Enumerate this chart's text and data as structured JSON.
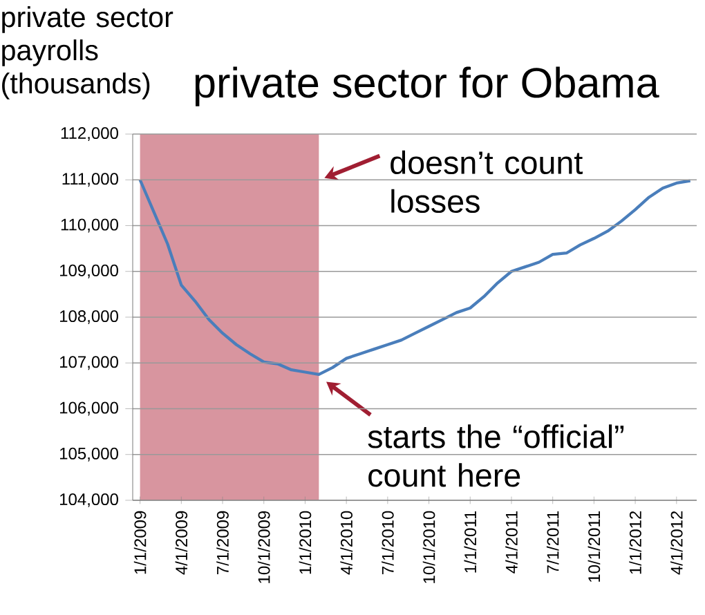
{
  "chart_data": {
    "type": "line",
    "title": "private sector for Obama",
    "ylabel": "private sector payrolls (thousands)",
    "x": [
      "2009-01",
      "2009-02",
      "2009-03",
      "2009-04",
      "2009-05",
      "2009-06",
      "2009-07",
      "2009-08",
      "2009-09",
      "2009-10",
      "2009-11",
      "2009-12",
      "2010-01",
      "2010-02",
      "2010-03",
      "2010-04",
      "2010-05",
      "2010-06",
      "2010-07",
      "2010-08",
      "2010-09",
      "2010-10",
      "2010-11",
      "2010-12",
      "2011-01",
      "2011-02",
      "2011-03",
      "2011-04",
      "2011-05",
      "2011-06",
      "2011-07",
      "2011-08",
      "2011-09",
      "2011-10",
      "2011-11",
      "2011-12",
      "2012-01",
      "2012-02",
      "2012-03",
      "2012-04",
      "2012-05"
    ],
    "values": [
      111000,
      110300,
      109600,
      108700,
      108350,
      107950,
      107650,
      107400,
      107200,
      107020,
      106980,
      106850,
      106800,
      106750,
      106900,
      107100,
      107200,
      107300,
      107400,
      107500,
      107650,
      107800,
      107950,
      108100,
      108200,
      108450,
      108750,
      109000,
      109100,
      109200,
      109370,
      109400,
      109580,
      109720,
      109880,
      110100,
      110350,
      110620,
      110820,
      110930,
      110980
    ],
    "color": "#4a7ebb",
    "line_style": "solid",
    "grid": "y",
    "xlim": [
      "2008-12-15",
      "2012-05-15"
    ],
    "ylim": [
      104000,
      112000
    ],
    "xticks": [
      {
        "value": "2009-01-01",
        "label": "1/1/2009"
      },
      {
        "value": "2009-04-01",
        "label": "4/1/2009"
      },
      {
        "value": "2009-07-01",
        "label": "7/1/2009"
      },
      {
        "value": "2009-10-01",
        "label": "10/1/2009"
      },
      {
        "value": "2010-01-01",
        "label": "1/1/2010"
      },
      {
        "value": "2010-04-01",
        "label": "4/1/2010"
      },
      {
        "value": "2010-07-01",
        "label": "7/1/2010"
      },
      {
        "value": "2010-10-01",
        "label": "10/1/2010"
      },
      {
        "value": "2011-01-01",
        "label": "1/1/2011"
      },
      {
        "value": "2011-04-01",
        "label": "4/1/2011"
      },
      {
        "value": "2011-07-01",
        "label": "7/1/2011"
      },
      {
        "value": "2011-10-01",
        "label": "10/1/2011"
      },
      {
        "value": "2012-01-01",
        "label": "1/1/2012"
      },
      {
        "value": "2012-04-01",
        "label": "4/1/2012"
      }
    ],
    "yticks": [
      {
        "value": 104000,
        "label": "104,000"
      },
      {
        "value": 105000,
        "label": "105,000"
      },
      {
        "value": 106000,
        "label": "106,000"
      },
      {
        "value": 107000,
        "label": "107,000"
      },
      {
        "value": 108000,
        "label": "108,000"
      },
      {
        "value": 109000,
        "label": "109,000"
      },
      {
        "value": 110000,
        "label": "110,000"
      },
      {
        "value": 111000,
        "label": "111,000"
      },
      {
        "value": 112000,
        "label": "112,000"
      }
    ],
    "bands": [
      {
        "axis": "x",
        "from": "2009-01",
        "to": "2010-02",
        "color": "#d8959f"
      }
    ],
    "annotations": [
      {
        "text": "doesn’t count losses",
        "x": "2010-02",
        "y": 111000
      },
      {
        "text": "starts the “official” count here",
        "x": "2010-02",
        "y": 106750
      }
    ]
  }
}
